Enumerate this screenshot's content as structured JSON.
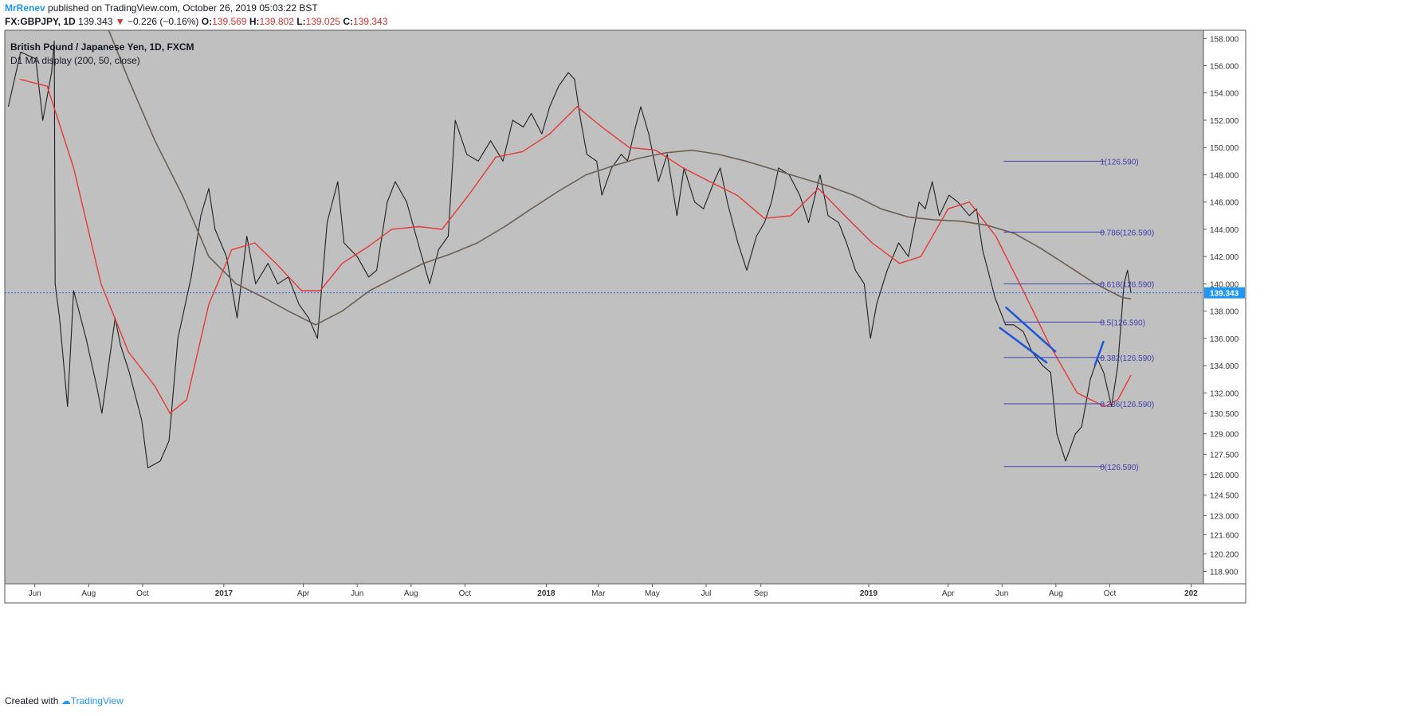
{
  "header": {
    "author": "MrRenev",
    "published": "published on TradingView.com, October 26, 2019 05:03:22 BST",
    "symbol": "FX:GBPJPY, 1D",
    "last": "139.343",
    "change": "−0.226 (−0.16%)",
    "o_label": "O:",
    "o_val": "139.569",
    "h_label": "H:",
    "h_val": "139.802",
    "l_label": "L:",
    "l_val": "139.025",
    "c_label": "C:",
    "c_val": "139.343"
  },
  "footer": {
    "created": "Created with",
    "brand": "TradingView"
  },
  "chart_data": {
    "type": "line",
    "title": "British Pound / Japanese Yen, 1D, FXCM",
    "indicator": "D1 MA display (200, 50, close)",
    "ylim": [
      118.0,
      158.6
    ],
    "y_ticks": [
      "158.000",
      "156.000",
      "154.000",
      "152.000",
      "150.000",
      "148.000",
      "146.000",
      "144.000",
      "142.000",
      "140.000",
      "138.000",
      "136.000",
      "134.000",
      "132.000",
      "130.500",
      "129.000",
      "127.500",
      "126.000",
      "124.500",
      "123.000",
      "121.600",
      "120.200",
      "118.900"
    ],
    "x_labels": [
      "Jun",
      "Aug",
      "Oct",
      "2017",
      "Apr",
      "Jun",
      "Aug",
      "Oct",
      "2018",
      "Mar",
      "May",
      "Jul",
      "Sep",
      "2019",
      "Apr",
      "Jun",
      "Aug",
      "Oct",
      "202"
    ],
    "last_price": "139.343",
    "colors": {
      "background": "#c0c0c0",
      "price": "#1f1f1f",
      "ma200": "#6d5f50",
      "ma50": "#e53935",
      "fib": "#3f3fb0",
      "channel": "#1e56d6",
      "last_price_line": "#2962ff"
    },
    "series": [
      {
        "name": "GBPJPY",
        "points": [
          [
            "2016-05-02",
            153.0
          ],
          [
            "2016-05-16",
            157.0
          ],
          [
            "2016-06-02",
            156.5
          ],
          [
            "2016-06-10",
            152.0
          ],
          [
            "2016-06-20",
            155.5
          ],
          [
            "2016-06-23",
            157.8
          ],
          [
            "2016-06-24",
            140.0
          ],
          [
            "2016-06-29",
            137.5
          ],
          [
            "2016-07-08",
            131.0
          ],
          [
            "2016-07-15",
            139.5
          ],
          [
            "2016-07-29",
            136.0
          ],
          [
            "2016-08-10",
            132.5
          ],
          [
            "2016-08-16",
            130.5
          ],
          [
            "2016-08-31",
            137.5
          ],
          [
            "2016-09-06",
            135.5
          ],
          [
            "2016-09-16",
            133.5
          ],
          [
            "2016-09-30",
            130.0
          ],
          [
            "2016-10-07",
            126.5
          ],
          [
            "2016-10-21",
            127.0
          ],
          [
            "2016-10-31",
            128.5
          ],
          [
            "2016-11-10",
            136.0
          ],
          [
            "2016-11-25",
            140.5
          ],
          [
            "2016-12-06",
            145.0
          ],
          [
            "2016-12-15",
            147.0
          ],
          [
            "2016-12-22",
            144.0
          ],
          [
            "2017-01-04",
            142.0
          ],
          [
            "2017-01-16",
            137.5
          ],
          [
            "2017-01-27",
            143.5
          ],
          [
            "2017-02-06",
            140.0
          ],
          [
            "2017-02-20",
            141.5
          ],
          [
            "2017-03-03",
            140.0
          ],
          [
            "2017-03-15",
            140.5
          ],
          [
            "2017-03-27",
            138.5
          ],
          [
            "2017-04-07",
            137.5
          ],
          [
            "2017-04-17",
            136.0
          ],
          [
            "2017-04-28",
            144.5
          ],
          [
            "2017-05-10",
            147.5
          ],
          [
            "2017-05-17",
            143.0
          ],
          [
            "2017-06-01",
            142.0
          ],
          [
            "2017-06-14",
            140.5
          ],
          [
            "2017-06-23",
            141.0
          ],
          [
            "2017-07-05",
            146.0
          ],
          [
            "2017-07-14",
            147.5
          ],
          [
            "2017-07-27",
            146.0
          ],
          [
            "2017-08-11",
            142.5
          ],
          [
            "2017-08-22",
            140.0
          ],
          [
            "2017-09-01",
            142.5
          ],
          [
            "2017-09-12",
            143.5
          ],
          [
            "2017-09-20",
            152.0
          ],
          [
            "2017-10-03",
            149.5
          ],
          [
            "2017-10-16",
            149.0
          ],
          [
            "2017-10-30",
            150.5
          ],
          [
            "2017-11-13",
            149.0
          ],
          [
            "2017-11-24",
            152.0
          ],
          [
            "2017-12-06",
            151.5
          ],
          [
            "2017-12-15",
            152.5
          ],
          [
            "2017-12-27",
            151.0
          ],
          [
            "2018-01-05",
            153.0
          ],
          [
            "2018-01-15",
            154.5
          ],
          [
            "2018-01-26",
            155.5
          ],
          [
            "2018-02-02",
            155.0
          ],
          [
            "2018-02-09",
            152.0
          ],
          [
            "2018-02-16",
            149.5
          ],
          [
            "2018-02-27",
            149.0
          ],
          [
            "2018-03-05",
            146.5
          ],
          [
            "2018-03-16",
            148.5
          ],
          [
            "2018-03-27",
            149.5
          ],
          [
            "2018-04-03",
            149.0
          ],
          [
            "2018-04-12",
            151.5
          ],
          [
            "2018-04-18",
            153.0
          ],
          [
            "2018-04-27",
            151.0
          ],
          [
            "2018-05-08",
            147.5
          ],
          [
            "2018-05-18",
            149.5
          ],
          [
            "2018-05-29",
            145.0
          ],
          [
            "2018-06-06",
            148.5
          ],
          [
            "2018-06-18",
            146.0
          ],
          [
            "2018-06-28",
            145.5
          ],
          [
            "2018-07-10",
            147.5
          ],
          [
            "2018-07-17",
            148.5
          ],
          [
            "2018-07-25",
            146.0
          ],
          [
            "2018-08-06",
            143.0
          ],
          [
            "2018-08-16",
            141.0
          ],
          [
            "2018-08-27",
            143.5
          ],
          [
            "2018-09-05",
            144.5
          ],
          [
            "2018-09-13",
            146.0
          ],
          [
            "2018-09-21",
            148.5
          ],
          [
            "2018-10-03",
            148.0
          ],
          [
            "2018-10-15",
            146.5
          ],
          [
            "2018-10-25",
            144.5
          ],
          [
            "2018-11-07",
            148.0
          ],
          [
            "2018-11-16",
            145.0
          ],
          [
            "2018-11-28",
            144.5
          ],
          [
            "2018-12-07",
            143.0
          ],
          [
            "2018-12-17",
            141.0
          ],
          [
            "2018-12-27",
            140.0
          ],
          [
            "2019-01-03",
            136.0
          ],
          [
            "2019-01-10",
            138.5
          ],
          [
            "2019-01-22",
            141.0
          ],
          [
            "2019-02-04",
            143.0
          ],
          [
            "2019-02-15",
            142.0
          ],
          [
            "2019-02-27",
            146.0
          ],
          [
            "2019-03-06",
            145.5
          ],
          [
            "2019-03-14",
            147.5
          ],
          [
            "2019-03-22",
            145.0
          ],
          [
            "2019-04-02",
            146.5
          ],
          [
            "2019-04-12",
            146.0
          ],
          [
            "2019-04-25",
            145.0
          ],
          [
            "2019-05-03",
            145.5
          ],
          [
            "2019-05-10",
            142.5
          ],
          [
            "2019-05-24",
            139.0
          ],
          [
            "2019-06-05",
            137.0
          ],
          [
            "2019-06-14",
            137.0
          ],
          [
            "2019-06-25",
            136.5
          ],
          [
            "2019-07-05",
            135.0
          ],
          [
            "2019-07-17",
            134.0
          ],
          [
            "2019-07-26",
            133.5
          ],
          [
            "2019-08-02",
            129.0
          ],
          [
            "2019-08-12",
            127.0
          ],
          [
            "2019-08-23",
            129.0
          ],
          [
            "2019-08-30",
            129.5
          ],
          [
            "2019-09-09",
            133.0
          ],
          [
            "2019-09-17",
            134.5
          ],
          [
            "2019-09-24",
            133.5
          ],
          [
            "2019-10-03",
            131.0
          ],
          [
            "2019-10-10",
            134.0
          ],
          [
            "2019-10-17",
            140.0
          ],
          [
            "2019-10-21",
            141.0
          ],
          [
            "2019-10-25",
            139.343
          ]
        ]
      },
      {
        "name": "MA 200",
        "points": [
          [
            "2016-08-15",
            160.0
          ],
          [
            "2016-09-15",
            155.0
          ],
          [
            "2016-10-15",
            150.5
          ],
          [
            "2016-11-15",
            146.5
          ],
          [
            "2016-12-15",
            142.0
          ],
          [
            "2017-01-15",
            140.0
          ],
          [
            "2017-02-15",
            139.0
          ],
          [
            "2017-03-15",
            138.0
          ],
          [
            "2017-04-15",
            137.0
          ],
          [
            "2017-05-15",
            138.0
          ],
          [
            "2017-06-15",
            139.5
          ],
          [
            "2017-07-15",
            140.5
          ],
          [
            "2017-08-15",
            141.5
          ],
          [
            "2017-09-15",
            142.2
          ],
          [
            "2017-10-15",
            143.0
          ],
          [
            "2017-11-15",
            144.2
          ],
          [
            "2017-12-15",
            145.5
          ],
          [
            "2018-01-15",
            146.8
          ],
          [
            "2018-02-15",
            148.0
          ],
          [
            "2018-03-15",
            148.6
          ],
          [
            "2018-04-15",
            149.2
          ],
          [
            "2018-05-15",
            149.6
          ],
          [
            "2018-06-15",
            149.8
          ],
          [
            "2018-07-15",
            149.5
          ],
          [
            "2018-08-15",
            149.0
          ],
          [
            "2018-09-15",
            148.4
          ],
          [
            "2018-10-15",
            147.8
          ],
          [
            "2018-11-15",
            147.2
          ],
          [
            "2018-12-15",
            146.5
          ],
          [
            "2019-01-15",
            145.5
          ],
          [
            "2019-02-15",
            144.9
          ],
          [
            "2019-03-15",
            144.7
          ],
          [
            "2019-04-15",
            144.6
          ],
          [
            "2019-05-15",
            144.3
          ],
          [
            "2019-06-15",
            143.7
          ],
          [
            "2019-07-15",
            142.6
          ],
          [
            "2019-08-15",
            141.3
          ],
          [
            "2019-09-15",
            140.0
          ],
          [
            "2019-10-15",
            139.0
          ],
          [
            "2019-10-25",
            138.9
          ]
        ]
      },
      {
        "name": "MA 50",
        "points": [
          [
            "2016-05-15",
            155.0
          ],
          [
            "2016-06-15",
            154.5
          ],
          [
            "2016-07-15",
            148.5
          ],
          [
            "2016-08-15",
            140.0
          ],
          [
            "2016-09-15",
            135.0
          ],
          [
            "2016-10-15",
            132.5
          ],
          [
            "2016-11-01",
            130.5
          ],
          [
            "2016-11-20",
            131.5
          ],
          [
            "2016-12-15",
            138.5
          ],
          [
            "2017-01-10",
            142.5
          ],
          [
            "2017-02-05",
            143.0
          ],
          [
            "2017-03-01",
            141.5
          ],
          [
            "2017-03-30",
            139.5
          ],
          [
            "2017-04-20",
            139.5
          ],
          [
            "2017-05-15",
            141.5
          ],
          [
            "2017-06-15",
            142.8
          ],
          [
            "2017-07-10",
            144.0
          ],
          [
            "2017-08-10",
            144.2
          ],
          [
            "2017-09-05",
            144.0
          ],
          [
            "2017-10-05",
            146.5
          ],
          [
            "2017-11-05",
            149.3
          ],
          [
            "2017-12-05",
            149.7
          ],
          [
            "2018-01-05",
            151.0
          ],
          [
            "2018-02-05",
            153.0
          ],
          [
            "2018-03-05",
            151.5
          ],
          [
            "2018-04-05",
            150.0
          ],
          [
            "2018-05-05",
            149.8
          ],
          [
            "2018-06-05",
            148.5
          ],
          [
            "2018-07-05",
            147.5
          ],
          [
            "2018-08-05",
            146.5
          ],
          [
            "2018-09-05",
            144.8
          ],
          [
            "2018-10-05",
            145.0
          ],
          [
            "2018-11-05",
            147.0
          ],
          [
            "2018-12-05",
            145.0
          ],
          [
            "2019-01-05",
            143.0
          ],
          [
            "2019-02-05",
            141.5
          ],
          [
            "2019-03-01",
            142.0
          ],
          [
            "2019-04-01",
            145.5
          ],
          [
            "2019-04-25",
            146.0
          ],
          [
            "2019-05-25",
            143.5
          ],
          [
            "2019-06-25",
            139.5
          ],
          [
            "2019-07-25",
            135.5
          ],
          [
            "2019-08-25",
            132.0
          ],
          [
            "2019-09-25",
            131.0
          ],
          [
            "2019-10-10",
            131.5
          ],
          [
            "2019-10-25",
            133.3
          ]
        ]
      }
    ],
    "fib_levels": [
      {
        "label": "1(126.590)",
        "value": 149.0
      },
      {
        "label": "0.786(126.590)",
        "value": 143.8
      },
      {
        "label": "0.618(126.590)",
        "value": 140.0
      },
      {
        "label": "0.5(126.590)",
        "value": 137.2
      },
      {
        "label": "0.382(126.590)",
        "value": 134.6
      },
      {
        "label": "0.236(126.590)",
        "value": 131.2
      },
      {
        "label": "0(126.590)",
        "value": 126.6
      }
    ],
    "channel_lines": [
      [
        [
          "2019-06-05",
          138.3
        ],
        [
          "2019-08-01",
          135.0
        ]
      ],
      [
        [
          "2019-05-29",
          136.8
        ],
        [
          "2019-07-22",
          134.2
        ]
      ],
      [
        [
          "2019-09-14",
          134.0
        ],
        [
          "2019-09-24",
          135.8
        ]
      ]
    ]
  }
}
